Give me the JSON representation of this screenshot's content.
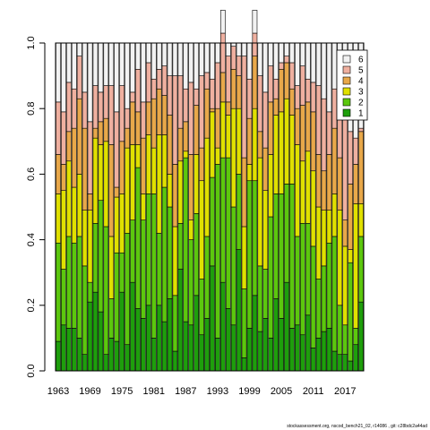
{
  "chart_data": {
    "type": "bar",
    "stacked": true,
    "years": [
      1963,
      1964,
      1965,
      1966,
      1967,
      1968,
      1969,
      1970,
      1971,
      1972,
      1973,
      1974,
      1975,
      1976,
      1977,
      1978,
      1979,
      1980,
      1981,
      1982,
      1983,
      1984,
      1985,
      1986,
      1987,
      1988,
      1989,
      1990,
      1991,
      1992,
      1993,
      1994,
      1995,
      1996,
      1997,
      1998,
      1999,
      2000,
      2001,
      2002,
      2003,
      2004,
      2005,
      2006,
      2007,
      2008,
      2009,
      2010,
      2011,
      2012,
      2013,
      2014,
      2015,
      2016,
      2017,
      2018,
      2019,
      2020
    ],
    "x_tick_labels": [
      "1963",
      "1969",
      "1975",
      "1981",
      "1987",
      "1993",
      "1999",
      "2005",
      "2011",
      "2017"
    ],
    "y_tick_labels": [
      "0.0",
      "0.2",
      "0.4",
      "0.6",
      "0.8",
      "1.0"
    ],
    "ylim": [
      0,
      1
    ],
    "legend_position": "top-right",
    "legend": [
      "6",
      "5",
      "4",
      "3",
      "2",
      "1"
    ],
    "series_colors": {
      "1": "#1e9e0c",
      "2": "#5cc70e",
      "3": "#e0e000",
      "4": "#e8a84a",
      "5": "#efb0a0",
      "6": "#f2f2f2"
    },
    "series": [
      {
        "name": "1",
        "values": [
          0.09,
          0.14,
          0.13,
          0.13,
          0.1,
          0.05,
          0.21,
          0.24,
          0.18,
          0.05,
          0.1,
          0.09,
          0.24,
          0.08,
          0.27,
          0.19,
          0.16,
          0.2,
          0.1,
          0.2,
          0.15,
          0.22,
          0.06,
          0.31,
          0.15,
          0.14,
          0.23,
          0.11,
          0.16,
          0.32,
          0.1,
          0.27,
          0.19,
          0.14,
          0.37,
          0.04,
          0.13,
          0.23,
          0.12,
          0.16,
          0.1,
          0.22,
          0.16,
          0.27,
          0.13,
          0.14,
          0.11,
          0.17,
          0.07,
          0.1,
          0.12,
          0.13,
          0.06,
          0.05,
          0.05,
          0.03,
          0.08,
          0.21
        ]
      },
      {
        "name": "2",
        "values": [
          0.3,
          0.17,
          0.28,
          0.26,
          0.31,
          0.27,
          0.06,
          0.21,
          0.34,
          0.39,
          0.12,
          0.27,
          0.12,
          0.34,
          0.19,
          0.43,
          0.3,
          0.34,
          0.44,
          0.22,
          0.41,
          0.28,
          0.17,
          0.14,
          0.5,
          0.26,
          0.25,
          0.17,
          0.25,
          0.27,
          0.53,
          0.38,
          0.46,
          0.36,
          0.23,
          0.21,
          0.45,
          0.35,
          0.2,
          0.15,
          0.37,
          0.32,
          0.38,
          0.3,
          0.44,
          0.27,
          0.34,
          0.28,
          0.31,
          0.18,
          0.2,
          0.26,
          0.35,
          0.15,
          0.09,
          0.3,
          0.05,
          0.2
        ]
      },
      {
        "name": "3",
        "values": [
          0.15,
          0.24,
          0.23,
          0.17,
          0.19,
          0.17,
          0.22,
          0.26,
          0.17,
          0.26,
          0.19,
          0.17,
          0.18,
          0.26,
          0.23,
          0.07,
          0.08,
          0.18,
          0.14,
          0.3,
          0.16,
          0.1,
          0.21,
          0.19,
          0.02,
          0.06,
          0.18,
          0.3,
          0.3,
          0.2,
          0.05,
          0.17,
          0.13,
          0.3,
          0.2,
          0.19,
          0.05,
          0.22,
          0.33,
          0.24,
          0.19,
          0.24,
          0.25,
          0.26,
          0.21,
          0.28,
          0.19,
          0.22,
          0.23,
          0.22,
          0.17,
          0.1,
          0.13,
          0.29,
          0.24,
          0.04,
          0.38,
          0.1
        ]
      },
      {
        "name": "4",
        "values": [
          0.12,
          0.08,
          0.09,
          0.18,
          0.23,
          0.25,
          0.05,
          0.03,
          0.07,
          0.07,
          0.28,
          0.03,
          0.16,
          0.06,
          0.13,
          0.1,
          0.17,
          0.1,
          0.15,
          0.14,
          0.12,
          0.18,
          0.19,
          0.1,
          0.09,
          0.2,
          0.15,
          0.1,
          0.15,
          0.01,
          0.12,
          0.09,
          0.04,
          0.12,
          0.1,
          0.21,
          0.14,
          0.16,
          0.08,
          0.13,
          0.16,
          0.05,
          0.13,
          0.11,
          0.08,
          0.11,
          0.17,
          0.15,
          0.18,
          0.16,
          0.12,
          0.17,
          0.2,
          0.16,
          0.08,
          0.2,
          0.12,
          0.22
        ]
      },
      {
        "name": "5",
        "values": [
          0.16,
          0.16,
          0.15,
          0.12,
          0.13,
          0.11,
          0.22,
          0.13,
          0.09,
          0.1,
          0.18,
          0.23,
          0.17,
          0.06,
          0.03,
          0.13,
          0.11,
          0.12,
          0.06,
          0.06,
          0.09,
          0.12,
          0.27,
          0.16,
          0.1,
          0.22,
          0.05,
          0.22,
          0.05,
          0.09,
          0.14,
          0.12,
          0.14,
          0.07,
          0.06,
          0.31,
          0.12,
          0.07,
          0.17,
          0.17,
          0.11,
          0.06,
          0.02,
          0.02,
          0.08,
          0.07,
          0.12,
          0.07,
          0.09,
          0.21,
          0.22,
          0.13,
          0.12,
          0.25,
          0.33,
          0.16,
          0.08,
          0.01
        ]
      },
      {
        "name": "6",
        "values": [
          0.18,
          0.21,
          0.12,
          0.14,
          0.04,
          0.15,
          0.24,
          0.13,
          0.15,
          0.13,
          0.13,
          0.21,
          0.13,
          0.2,
          0.15,
          0.08,
          0.18,
          0.06,
          0.11,
          0.08,
          0.07,
          0.1,
          0.1,
          0.1,
          0.14,
          0.12,
          0.14,
          0.1,
          0.09,
          0.11,
          0.06,
          0.07,
          0.04,
          0.01,
          0.04,
          0.04,
          0.11,
          0.07,
          0.1,
          0.15,
          0.07,
          0.11,
          0.06,
          0.04,
          0.06,
          0.13,
          0.07,
          0.11,
          0.12,
          0.13,
          0.17,
          0.21,
          0.14,
          0.1,
          0.21,
          0.27,
          0.29,
          0.26
        ]
      }
    ]
  },
  "footer": "stockassessment.org, nscod_bench21_02, r14086 , git: c28bdc2a44ad"
}
